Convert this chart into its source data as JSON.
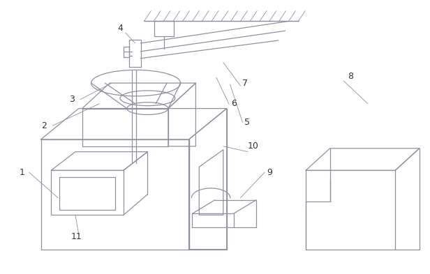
{
  "line_color": "#9090A0",
  "bg_color": "#ffffff",
  "label_color": "#333333",
  "lw": 0.9,
  "tlw": 0.6,
  "fig_w": 6.16,
  "fig_h": 3.93,
  "dpi": 100
}
